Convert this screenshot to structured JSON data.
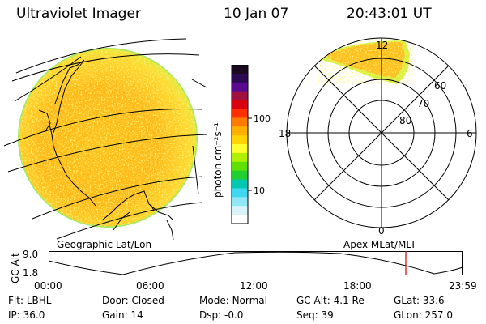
{
  "header": {
    "title": "Ultraviolet Imager",
    "date": "10 Jan 07",
    "time": "20:43:01 UT"
  },
  "colorbar": {
    "unit_label": "photon cm⁻²s⁻¹",
    "ticks": [
      "100",
      "10"
    ],
    "colors": [
      "#1a0a20",
      "#2a0a50",
      "#5a0a90",
      "#a01040",
      "#d80010",
      "#ff3000",
      "#ff7a00",
      "#ffb000",
      "#ffd400",
      "#ffff30",
      "#b0f000",
      "#60e000",
      "#20d030",
      "#00c8b0",
      "#40d8f0",
      "#90e8f4",
      "#d8f4f8",
      "#ffffff"
    ]
  },
  "geo_panel": {
    "caption": "Geographic Lat/Lon"
  },
  "polar_panel": {
    "caption": "Apex MLat/MLT",
    "mlt_labels": {
      "top": "12",
      "left": "18",
      "right": "6",
      "bottom": "0"
    },
    "lat_labels": [
      "60",
      "70",
      "80"
    ]
  },
  "altitude_plot": {
    "axis_label": "GC Alt",
    "y_ticks": [
      "9.0",
      "1.8"
    ],
    "x_ticks": [
      "00:00",
      "06:00",
      "12:00",
      "18:00",
      "23:59"
    ],
    "marker_color": "#d00000"
  },
  "status": {
    "flt_label": "Flt:",
    "flt_value": "LBHL",
    "ip_label": "IP:",
    "ip_value": "36.0",
    "door_label": "Door:",
    "door_value": "Closed",
    "gain_label": "Gain:",
    "gain_value": "14",
    "mode_label": "Mode:",
    "mode_value": "Normal",
    "dsp_label": "Dsp:",
    "dsp_value": "-0.0",
    "gcalt_label": "GC Alt:",
    "gcalt_value": "4.1 Re",
    "seq_label": "Seq:",
    "seq_value": "39",
    "glat_label": "GLat:",
    "glat_value": "33.6",
    "glon_label": "GLon:",
    "glon_value": "257.0"
  }
}
